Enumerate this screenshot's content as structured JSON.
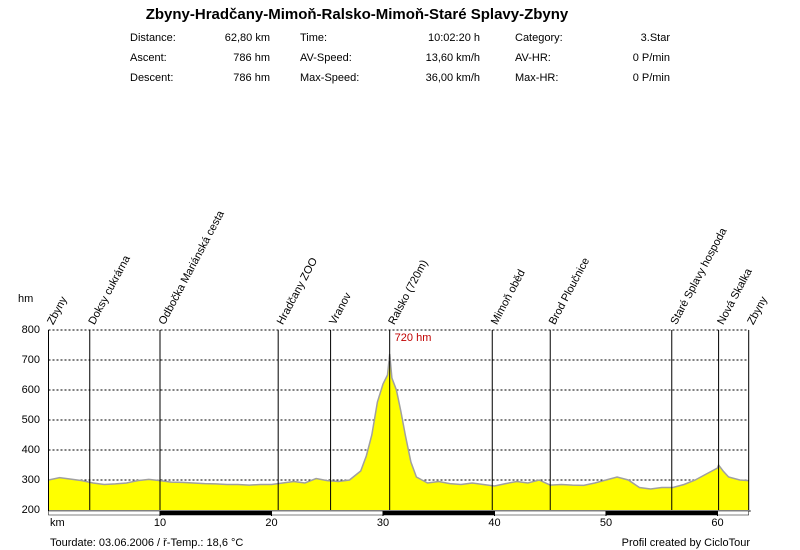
{
  "chart_data": {
    "type": "area",
    "title": "Zbyny-Hradčany-Mimoň-Ralsko-Mimoň-Staré Splavy-Zbyny",
    "stats": [
      [
        {
          "label": "Distance:",
          "value": "62,80 km"
        },
        {
          "label": "Time:",
          "value": "10:02:20 h"
        },
        {
          "label": "Category:",
          "value": "3.Star"
        }
      ],
      [
        {
          "label": "Ascent:",
          "value": "786 hm"
        },
        {
          "label": "AV-Speed:",
          "value": "13,60 km/h"
        },
        {
          "label": "AV-HR:",
          "value": "0 P/min"
        }
      ],
      [
        {
          "label": "Descent:",
          "value": "786 hm"
        },
        {
          "label": "Max-Speed:",
          "value": "36,00 km/h"
        },
        {
          "label": "Max-HR:",
          "value": "0 P/min"
        }
      ]
    ],
    "x_label": "km",
    "y_label": "hm",
    "x": [
      0,
      1,
      2,
      3,
      4,
      5,
      6,
      7,
      8,
      9,
      10,
      11,
      12,
      13,
      14,
      15,
      16,
      17,
      18,
      19,
      20,
      21,
      22,
      23,
      24,
      25,
      26,
      27,
      28,
      28.5,
      29,
      29.5,
      30,
      30.4,
      30.6,
      30.8,
      31.2,
      31.6,
      32,
      32.5,
      33,
      34,
      35,
      36,
      37,
      38,
      39,
      40,
      41,
      42,
      43,
      44,
      45,
      46,
      47,
      48,
      49,
      50,
      51,
      52,
      53,
      54,
      55,
      56,
      57,
      58,
      59,
      60,
      60.1,
      60.5,
      61,
      62,
      62.8
    ],
    "values": [
      300,
      308,
      303,
      298,
      290,
      285,
      287,
      290,
      298,
      302,
      298,
      293,
      292,
      290,
      288,
      287,
      285,
      285,
      283,
      285,
      285,
      290,
      295,
      290,
      305,
      298,
      295,
      300,
      330,
      380,
      450,
      560,
      620,
      650,
      720,
      640,
      600,
      530,
      450,
      360,
      310,
      290,
      295,
      288,
      285,
      290,
      285,
      280,
      288,
      295,
      290,
      300,
      283,
      285,
      283,
      282,
      290,
      300,
      310,
      300,
      275,
      270,
      275,
      275,
      285,
      300,
      320,
      340,
      350,
      330,
      310,
      300,
      298
    ],
    "color": "#ffff00",
    "line_color": "#a0a0a0",
    "xlim": [
      0,
      62.8
    ],
    "ylim": [
      200,
      800
    ],
    "xticks": [
      10,
      20,
      30,
      40,
      50,
      60
    ],
    "yticks": [
      200,
      300,
      400,
      500,
      600,
      700,
      800
    ],
    "grid": true,
    "waypoints": [
      {
        "x": 0,
        "label": "Zbyny"
      },
      {
        "x": 3.7,
        "label": "Doksy cukrárna"
      },
      {
        "x": 10.0,
        "label": "Odbočka Mariánská cesta"
      },
      {
        "x": 20.6,
        "label": "Hradčany ZOO"
      },
      {
        "x": 25.3,
        "label": "Vranov"
      },
      {
        "x": 30.6,
        "label": "Ralsko (720m)"
      },
      {
        "x": 39.8,
        "label": "Mimoň oběd"
      },
      {
        "x": 45.0,
        "label": "Brod Ploučnice"
      },
      {
        "x": 55.9,
        "label": "Staré Splavy hospoda"
      },
      {
        "x": 60.1,
        "label": "Nová Skalka"
      },
      {
        "x": 62.8,
        "label": "Zbyny"
      }
    ],
    "peak": {
      "x": 30.6,
      "y": 720,
      "label": "720 hm"
    },
    "footer_left": "Tourdate: 03.06.2006  / ř-Temp.: 18,6 °C",
    "footer_right": "Profil created by CicloTour"
  }
}
